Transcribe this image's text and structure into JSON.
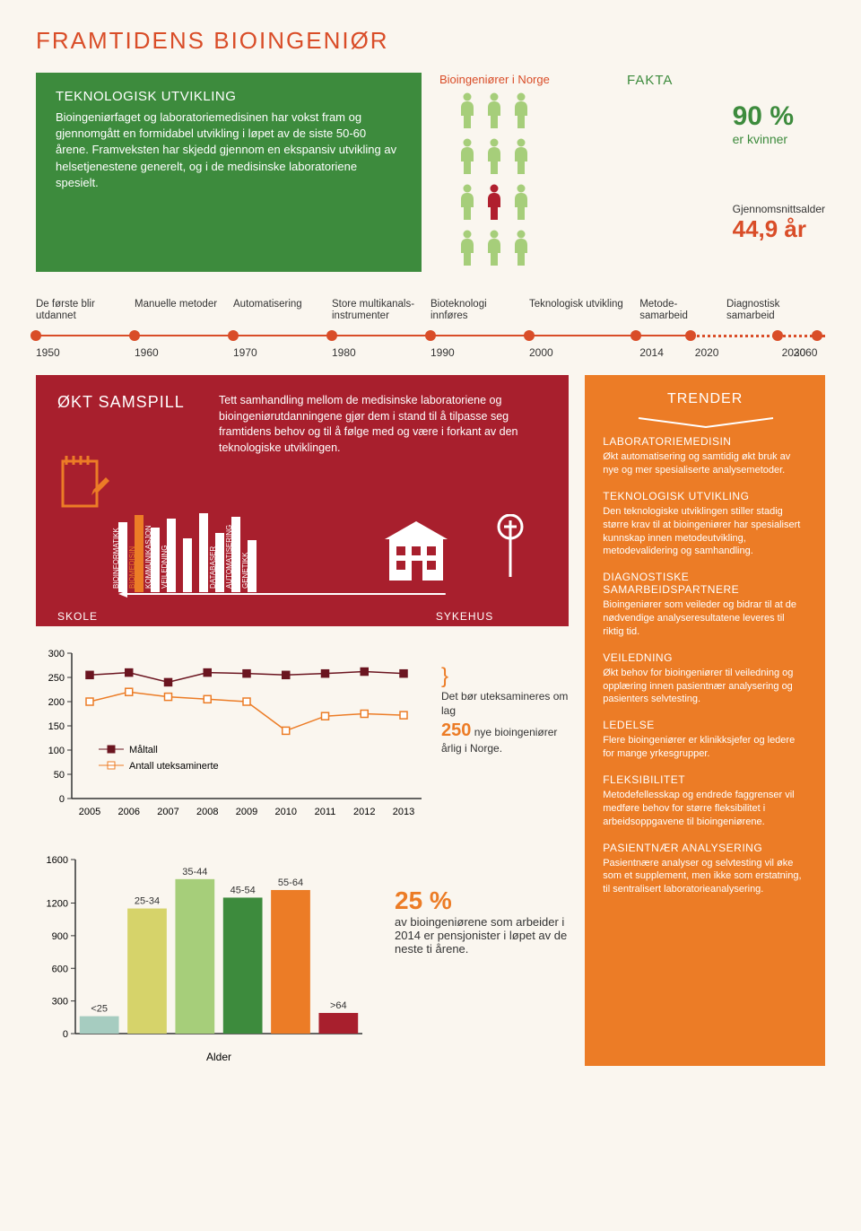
{
  "title": "FRAMTIDENS BIOINGENIØR",
  "green": {
    "heading": "TEKNOLOGISK UTVIKLING",
    "body": "Bioingeniørfaget og laboratoriemedisinen har vokst fram og gjennomgått en formidabel utvikling i løpet av de siste 50-60 årene. Framveksten har skjedd gjennom en ekspansiv utvikling av helsetjenestene generelt, og i de medisinske laboratoriene spesielt."
  },
  "fakta": {
    "title": "FAKTA",
    "bio_label": "Bioingeniører i Norge",
    "people_colors": [
      "#a6ce7a",
      "#a6ce7a",
      "#a6ce7a",
      "#a6ce7a",
      "#a6ce7a",
      "#a6ce7a",
      "#a6ce7a",
      "#b01f2e",
      "#a6ce7a",
      "#a6ce7a",
      "#a6ce7a",
      "#a6ce7a"
    ],
    "pct": "90 %",
    "pct_sub": "er kvinner",
    "age_label": "Gjennomsnittsalder",
    "age_val": "44,9 år"
  },
  "timeline": {
    "labels": [
      "De første blir utdannet",
      "Manuelle metoder",
      "Automatisering",
      "Store multikanals-instrumenter",
      "Bioteknologi innføres",
      "Teknologisk utvikling",
      "Metode-samarbeid",
      "Diagnostisk samarbeid"
    ],
    "label_widths_pct": [
      12.5,
      12.5,
      12.5,
      12.5,
      12.5,
      14,
      11,
      12.5
    ],
    "years": [
      "1950",
      "1960",
      "1970",
      "1980",
      "1990",
      "2000",
      "2014",
      "2020",
      "2030",
      "2060"
    ],
    "year_widths_pct": [
      12.5,
      12.5,
      12.5,
      12.5,
      12.5,
      14,
      7,
      11,
      1.5,
      4
    ],
    "dot_positions_pct": [
      0,
      12.5,
      25,
      37.5,
      50,
      62.5,
      76,
      83,
      94,
      99
    ],
    "solid_end_pct": 83,
    "dash_start_pct": 83,
    "dash_end_pct": 100,
    "color": "#d94d28"
  },
  "red": {
    "title": "ØKT SAMSPILL",
    "body": "Tett samhandling mellom de medisinske laboratoriene og bioingeniørutdanningene gjør dem i stand til å tilpasse seg framtidens behov og til å følge med og være i forkant av den teknologiske utviklingen.",
    "bars": [
      {
        "label": "BIOINFORMATIKK",
        "h": 78
      },
      {
        "label": "BIOMEDISIN",
        "h": 86,
        "color": "#ec7c26"
      },
      {
        "label": "KOMMUNIKASJON",
        "h": 72
      },
      {
        "label": "VEILEDNING",
        "h": 82
      },
      {
        "label": "",
        "h": 60
      },
      {
        "label": "",
        "h": 88
      },
      {
        "label": "DATABASER",
        "h": 66
      },
      {
        "label": "AUTOMATISERING",
        "h": 84
      },
      {
        "label": "GENETIKK",
        "h": 58
      }
    ],
    "skole": "SKOLE",
    "sykehus": "SYKEHUS"
  },
  "trender": {
    "title": "TRENDER",
    "sections": [
      {
        "h": "LABORATORIEMEDISIN",
        "p": "Økt automatisering og samtidig økt bruk av nye og mer spesialiserte analysemetoder."
      },
      {
        "h": "TEKNOLOGISK UTVIKLING",
        "p": "Den teknologiske utviklingen stiller stadig større krav til at bioingeniører har spesialisert kunnskap innen metodeutvikling, metodevalidering og samhandling."
      },
      {
        "h": "DIAGNOSTISKE SAMARBEIDSPARTNERE",
        "p": "Bioingeniører som veileder og bidrar til at de nødvendige analyseresultatene leveres til riktig tid."
      },
      {
        "h": "VEILEDNING",
        "p": "Økt behov for bioingeniører til veiledning og opplæring innen pasientnær analysering og pasienters selvtesting."
      },
      {
        "h": "LEDELSE",
        "p": "Flere bioingeniører er klinikksjefer og ledere for mange yrkesgrupper."
      },
      {
        "h": "FLEKSIBILITET",
        "p": "Metodefellesskap og endrede faggrenser vil medføre behov for større fleksibilitet i arbeidsoppgavene til bioingeniørene."
      },
      {
        "h": "PASIENTNÆR ANALYSERING",
        "p": "Pasientnære analyser og selvtesting vil øke som et supplement, men ikke som erstatning, til sentralisert laboratorieanalysering."
      }
    ]
  },
  "chart1": {
    "yticks": [
      0,
      50,
      100,
      150,
      200,
      250,
      300
    ],
    "ymax": 300,
    "years": [
      "2005",
      "2006",
      "2007",
      "2008",
      "2009",
      "2010",
      "2011",
      "2012",
      "2013"
    ],
    "series": [
      {
        "name": "Måltall",
        "color": "#6b1520",
        "fill": "#6b1520",
        "values": [
          255,
          260,
          240,
          260,
          258,
          255,
          258,
          262,
          258
        ]
      },
      {
        "name": "Antall uteksaminerte",
        "color": "#ec7c26",
        "fill": "#ffffff",
        "values": [
          200,
          220,
          210,
          205,
          200,
          140,
          170,
          175,
          172
        ]
      }
    ],
    "note_pre": "Det bør uteksamineres om lag",
    "note_big": "250",
    "note_post": " nye bioingeniører årlig i Norge."
  },
  "chart2": {
    "yticks": [
      0,
      300,
      600,
      900,
      1200,
      1600
    ],
    "ymax": 1600,
    "xlabel": "Alder",
    "bars": [
      {
        "label": "<25",
        "value": 160,
        "color": "#a6ccc0"
      },
      {
        "label": "25-34",
        "value": 1150,
        "color": "#d6d36a"
      },
      {
        "label": "35-44",
        "value": 1420,
        "color": "#a6ce7a"
      },
      {
        "label": "45-54",
        "value": 1250,
        "color": "#3d8b3d"
      },
      {
        "label": "55-64",
        "value": 1320,
        "color": "#ec7c26"
      },
      {
        "label": ">64",
        "value": 190,
        "color": "#a81f2d"
      }
    ],
    "note_big": "25 %",
    "note_post": "av bioingeniørene som arbeider i 2014 er pensjonister i løpet av de neste ti årene."
  }
}
